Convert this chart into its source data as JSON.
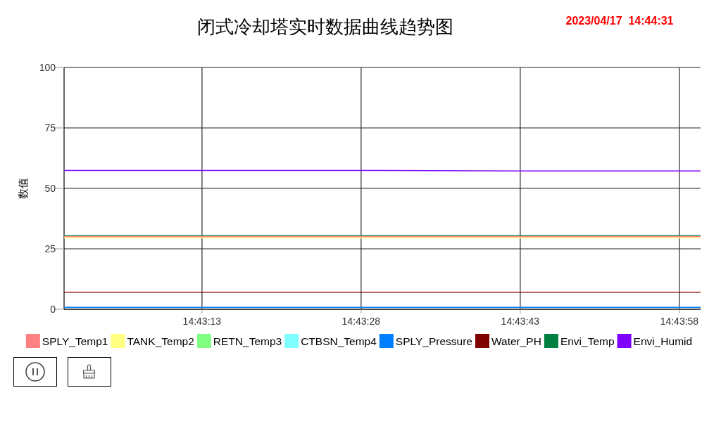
{
  "chart_data": {
    "type": "line",
    "title": "闭式冷却塔实时数据曲线趋势图",
    "ylabel": "数值",
    "annotations": [
      "2023/04/17  14:44:31"
    ],
    "x": [
      14.716667,
      14.725,
      14.728611,
      14.733333
    ],
    "xlim": [
      14.716667,
      14.733333
    ],
    "xticks": [
      {
        "value": 14.720278,
        "label": "14:43:13"
      },
      {
        "value": 14.724444,
        "label": "14:43:28"
      },
      {
        "value": 14.728611,
        "label": "14:43:43"
      },
      {
        "value": 14.732778,
        "label": "14:43:58"
      }
    ],
    "ylim": [
      0,
      100
    ],
    "yticks": [
      0,
      25,
      50,
      75,
      100
    ],
    "grid": true,
    "legend": "bottom",
    "series": [
      {
        "name": "SPLY_Temp1",
        "color": "#ff8080",
        "values": [
          30.0,
          30.0,
          30.0,
          30.0
        ]
      },
      {
        "name": "TANK_Temp2",
        "color": "#ffff80",
        "values": [
          29.5,
          29.5,
          29.5,
          29.5
        ]
      },
      {
        "name": "RETN_Temp3",
        "color": "#80ff80",
        "values": [
          null,
          null,
          null,
          null
        ]
      },
      {
        "name": "CTBSN_Temp4",
        "color": "#80ffff",
        "values": [
          null,
          null,
          null,
          null
        ]
      },
      {
        "name": "SPLY_Pressure",
        "color": "#0080ff",
        "values": [
          0.8,
          0.8,
          0.8,
          0.8
        ]
      },
      {
        "name": "Water_PH",
        "color": "#800000",
        "values": [
          7.0,
          7.0,
          7.0,
          7.0
        ]
      },
      {
        "name": "Envi_Temp",
        "color": "#008040",
        "values": [
          30.5,
          30.5,
          30.5,
          30.5
        ]
      },
      {
        "name": "Envi_Humid",
        "color": "#8000ff",
        "values": [
          57.4,
          57.4,
          57.2,
          57.2
        ]
      }
    ]
  }
}
